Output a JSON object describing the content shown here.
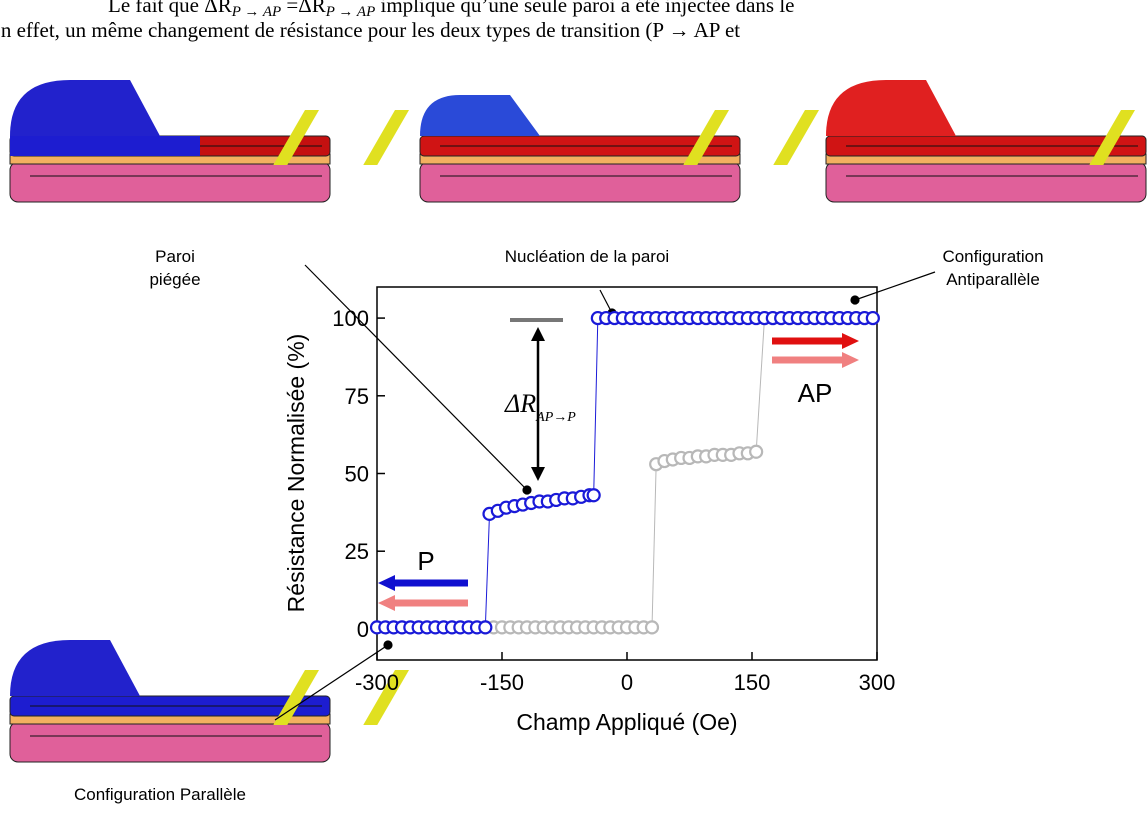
{
  "document": {
    "lines": [
      [
        "Le fait que ΔR",
        "P → AP",
        " =ΔR",
        "P → AP",
        " implique qu’une seule paroi a été injectée dans le"
      ],
      [
        "En effet, un même changement de résistance pour les deux types de transition (P → AP et"
      ]
    ]
  },
  "chart_data": {
    "type": "scatter",
    "xlabel": "Champ Appliqué (Oe)",
    "ylabel": "Résistance Normalisée (%)",
    "xlim": [
      -300,
      300
    ],
    "ylim": [
      -10,
      110
    ],
    "xticks": [
      -300,
      -150,
      0,
      150,
      300
    ],
    "yticks": [
      0,
      25,
      50,
      75,
      100
    ],
    "series": [
      {
        "name": "gray",
        "color": "#b8b8b8",
        "x": [
          -170,
          -160,
          -150,
          -140,
          -130,
          -120,
          -110,
          -100,
          -90,
          -80,
          -70,
          -60,
          -50,
          -40,
          -30,
          -20,
          -10,
          0,
          10,
          20,
          30,
          35,
          45,
          55,
          65,
          75,
          85,
          95,
          105,
          115,
          125,
          135,
          145,
          155,
          165,
          175,
          185,
          195,
          205,
          215,
          225,
          235,
          245,
          255,
          265,
          275,
          285,
          295
        ],
        "values": [
          0.5,
          0.5,
          0.5,
          0.5,
          0.5,
          0.5,
          0.5,
          0.5,
          0.5,
          0.5,
          0.5,
          0.5,
          0.5,
          0.5,
          0.5,
          0.5,
          0.5,
          0.5,
          0.5,
          0.5,
          0.5,
          53,
          54,
          54.5,
          55,
          55,
          55.5,
          55.5,
          56,
          56,
          56,
          56.5,
          56.5,
          57,
          100,
          100,
          100,
          100,
          100,
          100,
          100,
          100,
          100,
          100,
          100,
          100,
          100,
          100
        ]
      },
      {
        "name": "blue",
        "color": "#1a1ad8",
        "x": [
          -300,
          -290,
          -280,
          -270,
          -260,
          -250,
          -240,
          -230,
          -220,
          -210,
          -200,
          -190,
          -180,
          -170,
          -165,
          -155,
          -145,
          -135,
          -125,
          -115,
          -105,
          -95,
          -85,
          -75,
          -65,
          -55,
          -45,
          -40,
          -35,
          -25,
          -15,
          -5,
          5,
          15,
          25,
          35,
          45,
          55,
          65,
          75,
          85,
          95,
          105,
          115,
          125,
          135,
          145,
          155,
          165,
          175,
          185,
          195,
          205,
          215,
          225,
          235,
          245,
          255,
          265,
          275,
          285,
          295
        ],
        "values": [
          0.5,
          0.5,
          0.5,
          0.5,
          0.5,
          0.5,
          0.5,
          0.5,
          0.5,
          0.5,
          0.5,
          0.5,
          0.5,
          0.5,
          37,
          38,
          39,
          39.5,
          40,
          40.5,
          41,
          41,
          41.5,
          42,
          42,
          42.5,
          43,
          43,
          100,
          100,
          100,
          100,
          100,
          100,
          100,
          100,
          100,
          100,
          100,
          100,
          100,
          100,
          100,
          100,
          100,
          100,
          100,
          100,
          100,
          100,
          100,
          100,
          100,
          100,
          100,
          100,
          100,
          100,
          100,
          100,
          100,
          100
        ]
      }
    ],
    "annotations": {
      "trapped": [
        "Paroi",
        "piégée"
      ],
      "nucleation": "Nucléation de la paroi",
      "antiparallel": [
        "Configuration",
        "Antiparallèle"
      ],
      "parallel": "Configuration Parallèle",
      "p": "P",
      "ap": "AP",
      "delta": "ΔR",
      "delta_sub": "AP→P"
    }
  }
}
